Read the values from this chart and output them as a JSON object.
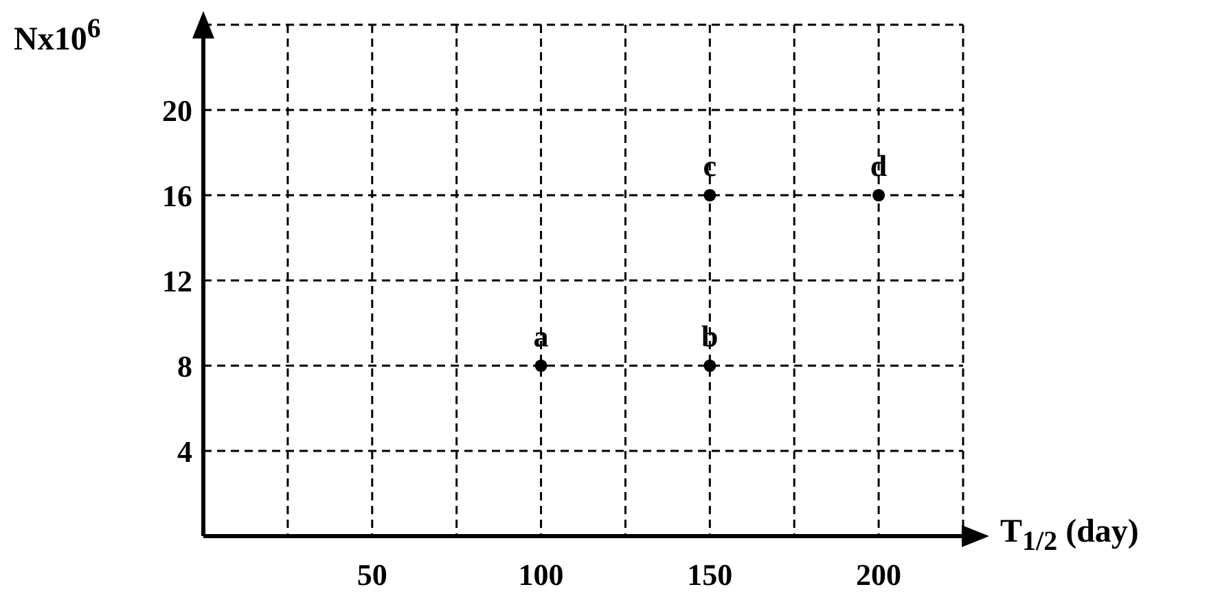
{
  "chart_data": {
    "type": "scatter",
    "xlabel": "T$_{1/2}$ (day)",
    "ylabel": "Nx10$^{6}$",
    "x": [
      100,
      150,
      150,
      200
    ],
    "values": [
      8,
      8,
      16,
      16
    ],
    "color": "#000000",
    "marker": "circle",
    "xlim": [
      0,
      225
    ],
    "ylim": [
      0,
      24
    ],
    "xticks": [
      {
        "value": 25,
        "label": null
      },
      50,
      {
        "value": 75,
        "label": null
      },
      100,
      {
        "value": 125,
        "label": null
      },
      150,
      {
        "value": 175,
        "label": null
      },
      200,
      {
        "value": 225,
        "label": null
      }
    ],
    "yticks": [
      4,
      8,
      12,
      16,
      20,
      {
        "value": 24,
        "label": null
      }
    ],
    "grid": true,
    "line_style": "dashed",
    "annotations": [
      {
        "text": "a",
        "x": 100,
        "y": 8
      },
      {
        "text": "b",
        "x": 150,
        "y": 8
      },
      {
        "text": "c",
        "x": 150,
        "y": 16
      },
      {
        "text": "d",
        "x": 200,
        "y": 16
      }
    ]
  }
}
